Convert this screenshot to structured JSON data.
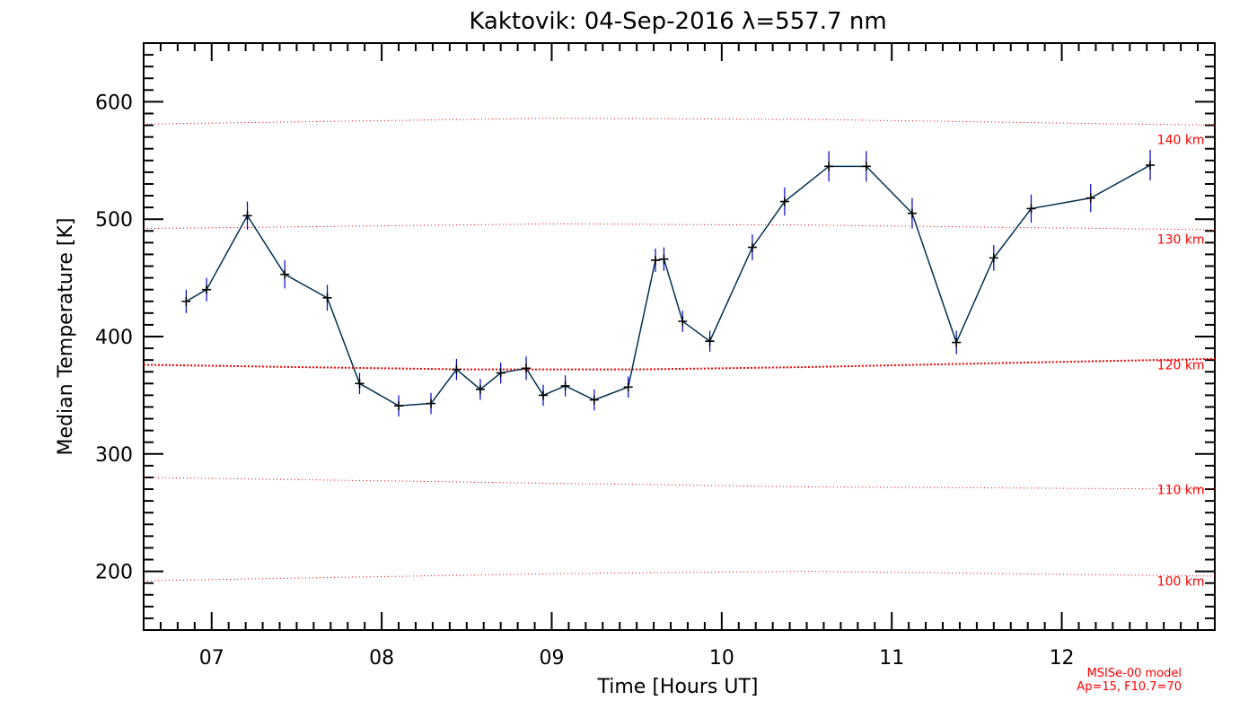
{
  "chart_data": {
    "type": "line",
    "title": "Kaktovik: 04-Sep-2016 λ=557.7 nm",
    "xlabel": "Time [Hours UT]",
    "ylabel": "Median Temperature [K]",
    "xlim": [
      6.6,
      12.9
    ],
    "ylim": [
      150,
      650
    ],
    "x_ticks": [
      {
        "value": 7,
        "label": "07"
      },
      {
        "value": 8,
        "label": "08"
      },
      {
        "value": 9,
        "label": "09"
      },
      {
        "value": 10,
        "label": "10"
      },
      {
        "value": 11,
        "label": "11"
      },
      {
        "value": 12,
        "label": "12"
      }
    ],
    "y_ticks": [
      {
        "value": 200,
        "label": "200"
      },
      {
        "value": 300,
        "label": "300"
      },
      {
        "value": 400,
        "label": "400"
      },
      {
        "value": 500,
        "label": "500"
      },
      {
        "value": 600,
        "label": "600"
      }
    ],
    "series": [
      {
        "color": "#000000",
        "line_color": "#003050",
        "error_color": "#0000cc",
        "x": [
          6.85,
          6.97,
          7.21,
          7.43,
          7.68,
          7.87,
          8.1,
          8.29,
          8.44,
          8.58,
          8.7,
          8.85,
          8.95,
          9.08,
          9.25,
          9.45,
          9.61,
          9.66,
          9.77,
          9.93,
          10.18,
          10.37,
          10.63,
          10.85,
          11.12,
          11.38,
          11.6,
          11.82,
          12.17,
          12.52
        ],
        "y": [
          430,
          440,
          503,
          453,
          433,
          360,
          341,
          343,
          372,
          355,
          369,
          373,
          350,
          358,
          346,
          357,
          465,
          466,
          413,
          396,
          476,
          515,
          545,
          545,
          505,
          395,
          467,
          509,
          518,
          546
        ],
        "err": [
          10,
          10,
          12,
          12,
          11,
          9,
          9,
          9,
          9,
          9,
          9,
          10,
          9,
          9,
          9,
          9,
          10,
          10,
          9,
          9,
          11,
          12,
          13,
          13,
          13,
          10,
          11,
          12,
          12,
          13
        ]
      }
    ],
    "model_lines": [
      {
        "label": "100 km",
        "x": [
          6.6,
          9.0,
          10.5,
          12.9
        ],
        "y": [
          192,
          198,
          200,
          196
        ],
        "bold": false
      },
      {
        "label": "110 km",
        "x": [
          6.6,
          9.0,
          10.5,
          12.9
        ],
        "y": [
          280,
          275,
          272,
          270
        ],
        "bold": false
      },
      {
        "label": "120 km",
        "x": [
          6.6,
          7.5,
          8.5,
          9.5,
          10.5,
          11.5,
          12.9
        ],
        "y": [
          376,
          374,
          372,
          372,
          374,
          377,
          381
        ],
        "bold": true
      },
      {
        "label": "130 km",
        "x": [
          6.6,
          9.0,
          10.5,
          12.9
        ],
        "y": [
          492,
          496,
          495,
          491
        ],
        "bold": false
      },
      {
        "label": "140 km",
        "x": [
          6.6,
          9.0,
          10.5,
          12.9
        ],
        "y": [
          581,
          586,
          585,
          580
        ],
        "bold": false
      }
    ],
    "model_label_x": 12.7,
    "model_label_y": [
      188,
      266,
      372,
      479,
      564
    ],
    "model_color": "#ff0000",
    "annotation": [
      "MSISe-00 model",
      "Ap=15, F10.7=70"
    ],
    "grid": false,
    "legend": "none"
  }
}
